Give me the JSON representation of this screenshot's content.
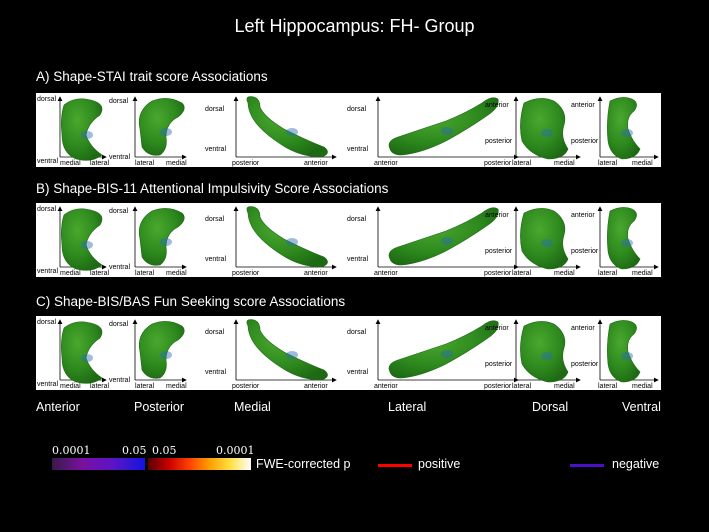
{
  "title": "Left Hippocampus: FH- Group",
  "sections": [
    {
      "label": "A) Shape-STAI trait score Associations"
    },
    {
      "label": "B) Shape-BIS-11 Attentional Impulsivity Score Associations"
    },
    {
      "label": "C) Shape-BIS/BAS Fun Seeking score Associations"
    }
  ],
  "axes": {
    "anterior": {
      "y": "dorsal",
      "y2": "ventral",
      "x1": "medial",
      "x2": "lateral"
    },
    "posterior": {
      "y": "dorsal",
      "y2": "ventral",
      "x1": "lateral",
      "x2": "medial"
    },
    "medial": {
      "y": "dorsal",
      "y2": "ventral",
      "x1": "posterior",
      "x2": "anterior"
    },
    "lateral": {
      "y": "dorsal",
      "y2": "ventral",
      "x1": "anterior",
      "x2": "posterior"
    },
    "dorsal": {
      "y": "anterior",
      "y2": "posterior",
      "x1": "lateral",
      "x2": "medial"
    },
    "ventral": {
      "y": "anterior",
      "y2": "posterior",
      "x1": "lateral",
      "x2": "medial"
    }
  },
  "views": [
    "Anterior",
    "Posterior",
    "Medial",
    "Lateral",
    "Dorsal",
    "Ventral"
  ],
  "colorbar": {
    "neg_min": "0.0001",
    "neg_max": "0.05",
    "pos_min": "0.05",
    "pos_max": "0.0001",
    "label": "FWE-corrected p",
    "neg_colors": [
      "#3a1a4a",
      "#7a10a0",
      "#5a14c8",
      "#1414e0"
    ],
    "pos_colors": [
      "#5a0000",
      "#c80000",
      "#ff4000",
      "#ffa000",
      "#ffe040",
      "#ffffff"
    ]
  },
  "legend": {
    "positive_label": "positive",
    "positive_color": "#ff0000",
    "negative_label": "negative",
    "negative_color": "#4a10c8"
  },
  "colors": {
    "surface": "#2e8a1e",
    "surface_dark": "#1e6a14",
    "negative_patch": "#2a6ab4"
  }
}
